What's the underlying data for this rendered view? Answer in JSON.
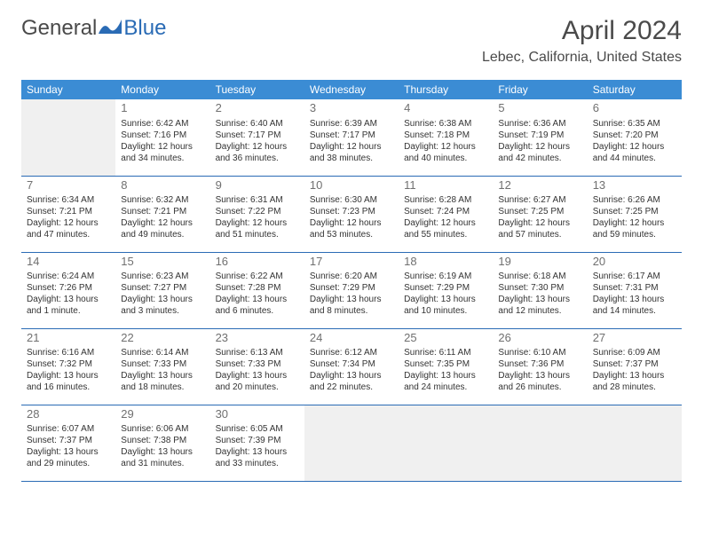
{
  "logo": {
    "general": "General",
    "blue": "Blue"
  },
  "title": "April 2024",
  "location": "Lebec, California, United States",
  "dayHeaders": [
    "Sunday",
    "Monday",
    "Tuesday",
    "Wednesday",
    "Thursday",
    "Friday",
    "Saturday"
  ],
  "colors": {
    "headerBg": "#3b8cd4",
    "headerText": "#ffffff",
    "accent": "#2a6bb5",
    "titleText": "#4a4a4a",
    "bodyText": "#333333",
    "dayNumText": "#707070",
    "emptyBg": "#f0f0f0"
  },
  "typography": {
    "monthTitleSize": 30,
    "locationSize": 16,
    "dayHeaderSize": 12,
    "dayNumSize": 13,
    "infoSize": 10,
    "fontFamily": "Arial"
  },
  "layout": {
    "startOffset": 1,
    "totalDays": 30,
    "columns": 7,
    "rows": 5
  },
  "days": [
    {
      "n": "1",
      "sr": "Sunrise: 6:42 AM",
      "ss": "Sunset: 7:16 PM",
      "dl": "Daylight: 12 hours and 34 minutes."
    },
    {
      "n": "2",
      "sr": "Sunrise: 6:40 AM",
      "ss": "Sunset: 7:17 PM",
      "dl": "Daylight: 12 hours and 36 minutes."
    },
    {
      "n": "3",
      "sr": "Sunrise: 6:39 AM",
      "ss": "Sunset: 7:17 PM",
      "dl": "Daylight: 12 hours and 38 minutes."
    },
    {
      "n": "4",
      "sr": "Sunrise: 6:38 AM",
      "ss": "Sunset: 7:18 PM",
      "dl": "Daylight: 12 hours and 40 minutes."
    },
    {
      "n": "5",
      "sr": "Sunrise: 6:36 AM",
      "ss": "Sunset: 7:19 PM",
      "dl": "Daylight: 12 hours and 42 minutes."
    },
    {
      "n": "6",
      "sr": "Sunrise: 6:35 AM",
      "ss": "Sunset: 7:20 PM",
      "dl": "Daylight: 12 hours and 44 minutes."
    },
    {
      "n": "7",
      "sr": "Sunrise: 6:34 AM",
      "ss": "Sunset: 7:21 PM",
      "dl": "Daylight: 12 hours and 47 minutes."
    },
    {
      "n": "8",
      "sr": "Sunrise: 6:32 AM",
      "ss": "Sunset: 7:21 PM",
      "dl": "Daylight: 12 hours and 49 minutes."
    },
    {
      "n": "9",
      "sr": "Sunrise: 6:31 AM",
      "ss": "Sunset: 7:22 PM",
      "dl": "Daylight: 12 hours and 51 minutes."
    },
    {
      "n": "10",
      "sr": "Sunrise: 6:30 AM",
      "ss": "Sunset: 7:23 PM",
      "dl": "Daylight: 12 hours and 53 minutes."
    },
    {
      "n": "11",
      "sr": "Sunrise: 6:28 AM",
      "ss": "Sunset: 7:24 PM",
      "dl": "Daylight: 12 hours and 55 minutes."
    },
    {
      "n": "12",
      "sr": "Sunrise: 6:27 AM",
      "ss": "Sunset: 7:25 PM",
      "dl": "Daylight: 12 hours and 57 minutes."
    },
    {
      "n": "13",
      "sr": "Sunrise: 6:26 AM",
      "ss": "Sunset: 7:25 PM",
      "dl": "Daylight: 12 hours and 59 minutes."
    },
    {
      "n": "14",
      "sr": "Sunrise: 6:24 AM",
      "ss": "Sunset: 7:26 PM",
      "dl": "Daylight: 13 hours and 1 minute."
    },
    {
      "n": "15",
      "sr": "Sunrise: 6:23 AM",
      "ss": "Sunset: 7:27 PM",
      "dl": "Daylight: 13 hours and 3 minutes."
    },
    {
      "n": "16",
      "sr": "Sunrise: 6:22 AM",
      "ss": "Sunset: 7:28 PM",
      "dl": "Daylight: 13 hours and 6 minutes."
    },
    {
      "n": "17",
      "sr": "Sunrise: 6:20 AM",
      "ss": "Sunset: 7:29 PM",
      "dl": "Daylight: 13 hours and 8 minutes."
    },
    {
      "n": "18",
      "sr": "Sunrise: 6:19 AM",
      "ss": "Sunset: 7:29 PM",
      "dl": "Daylight: 13 hours and 10 minutes."
    },
    {
      "n": "19",
      "sr": "Sunrise: 6:18 AM",
      "ss": "Sunset: 7:30 PM",
      "dl": "Daylight: 13 hours and 12 minutes."
    },
    {
      "n": "20",
      "sr": "Sunrise: 6:17 AM",
      "ss": "Sunset: 7:31 PM",
      "dl": "Daylight: 13 hours and 14 minutes."
    },
    {
      "n": "21",
      "sr": "Sunrise: 6:16 AM",
      "ss": "Sunset: 7:32 PM",
      "dl": "Daylight: 13 hours and 16 minutes."
    },
    {
      "n": "22",
      "sr": "Sunrise: 6:14 AM",
      "ss": "Sunset: 7:33 PM",
      "dl": "Daylight: 13 hours and 18 minutes."
    },
    {
      "n": "23",
      "sr": "Sunrise: 6:13 AM",
      "ss": "Sunset: 7:33 PM",
      "dl": "Daylight: 13 hours and 20 minutes."
    },
    {
      "n": "24",
      "sr": "Sunrise: 6:12 AM",
      "ss": "Sunset: 7:34 PM",
      "dl": "Daylight: 13 hours and 22 minutes."
    },
    {
      "n": "25",
      "sr": "Sunrise: 6:11 AM",
      "ss": "Sunset: 7:35 PM",
      "dl": "Daylight: 13 hours and 24 minutes."
    },
    {
      "n": "26",
      "sr": "Sunrise: 6:10 AM",
      "ss": "Sunset: 7:36 PM",
      "dl": "Daylight: 13 hours and 26 minutes."
    },
    {
      "n": "27",
      "sr": "Sunrise: 6:09 AM",
      "ss": "Sunset: 7:37 PM",
      "dl": "Daylight: 13 hours and 28 minutes."
    },
    {
      "n": "28",
      "sr": "Sunrise: 6:07 AM",
      "ss": "Sunset: 7:37 PM",
      "dl": "Daylight: 13 hours and 29 minutes."
    },
    {
      "n": "29",
      "sr": "Sunrise: 6:06 AM",
      "ss": "Sunset: 7:38 PM",
      "dl": "Daylight: 13 hours and 31 minutes."
    },
    {
      "n": "30",
      "sr": "Sunrise: 6:05 AM",
      "ss": "Sunset: 7:39 PM",
      "dl": "Daylight: 13 hours and 33 minutes."
    }
  ]
}
